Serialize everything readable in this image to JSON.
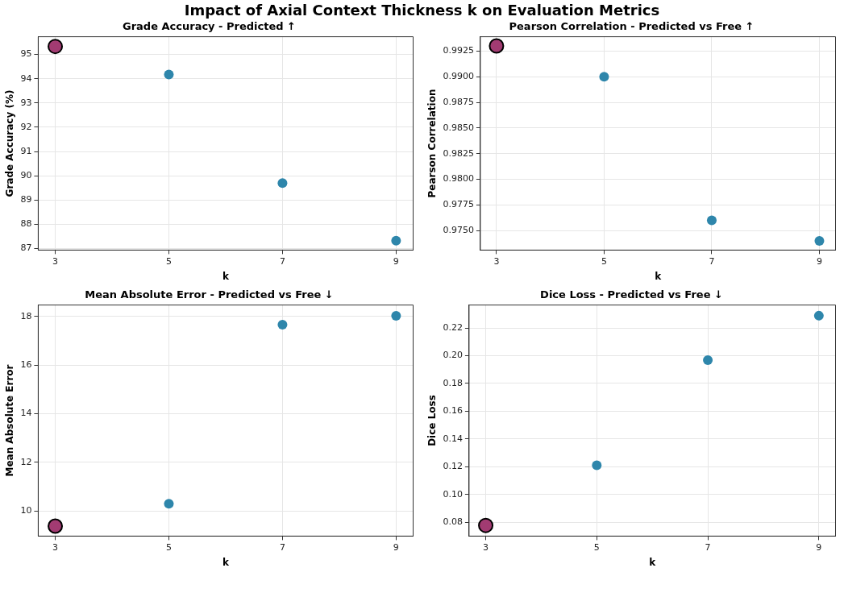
{
  "chart_data": [
    {
      "type": "other",
      "title": "Impact of Axial Context Thickness k on Evaluation Metrics"
    },
    {
      "type": "scatter",
      "title": "Grade Accuracy - Predicted ↑",
      "xlabel": "k",
      "ylabel": "Grade Accuracy (%)",
      "xlim": [
        2.7,
        9.3
      ],
      "xticks": [
        3,
        5,
        7,
        9
      ],
      "ylim": [
        86.94,
        95.73
      ],
      "yticks": [
        87,
        88,
        89,
        90,
        91,
        92,
        93,
        94,
        95
      ],
      "grid": true,
      "marker": "circle",
      "series": [
        {
          "color": "#2e86ab",
          "x": [
            5,
            7,
            9
          ],
          "values": [
            94.17,
            89.7,
            87.33
          ]
        },
        {
          "color": "#a23b72",
          "x": [
            3
          ],
          "values": [
            95.33
          ]
        }
      ]
    },
    {
      "type": "scatter",
      "title": "Pearson Correlation - Predicted vs Free ↑",
      "xlabel": "k",
      "ylabel": "Pearson Correlation",
      "xlim": [
        2.7,
        9.3
      ],
      "xticks": [
        3,
        5,
        7,
        9
      ],
      "ylim": [
        0.9731,
        0.9939
      ],
      "yticks": [
        {
          "value": 0.975,
          "label": "0.9750"
        },
        0.9775,
        {
          "value": 0.98,
          "label": "0.9800"
        },
        0.9825,
        {
          "value": 0.985,
          "label": "0.9850"
        },
        0.9875,
        {
          "value": 0.99,
          "label": "0.9900"
        },
        0.9925
      ],
      "grid": true,
      "marker": "circle",
      "series": [
        {
          "color": "#2e86ab",
          "x": [
            5,
            7,
            9
          ],
          "values": [
            0.99,
            0.976,
            0.974
          ]
        },
        {
          "color": "#a23b72",
          "x": [
            3
          ],
          "values": [
            0.993
          ]
        }
      ]
    },
    {
      "type": "scatter",
      "title": "Mean Absolute Error - Predicted vs Free ↓",
      "xlabel": "k",
      "ylabel": "Mean Absolute Error",
      "xlim": [
        2.7,
        9.3
      ],
      "xticks": [
        3,
        5,
        7,
        9
      ],
      "ylim": [
        8.97,
        18.47
      ],
      "yticks": [
        10,
        12,
        14,
        16,
        18
      ],
      "grid": true,
      "marker": "circle",
      "series": [
        {
          "color": "#2e86ab",
          "x": [
            5,
            7,
            9
          ],
          "values": [
            10.3,
            17.66,
            18.03
          ]
        },
        {
          "color": "#a23b72",
          "x": [
            3
          ],
          "values": [
            9.38
          ]
        }
      ]
    },
    {
      "type": "scatter",
      "title": "Dice Loss - Predicted vs Free ↓",
      "xlabel": "k",
      "ylabel": "Dice Loss",
      "xlim": [
        2.7,
        9.3
      ],
      "xticks": [
        3,
        5,
        7,
        9
      ],
      "ylim": [
        0.0701,
        0.2365
      ],
      "yticks": [
        0.08,
        {
          "value": 0.1,
          "label": "0.10"
        },
        0.12,
        0.14,
        0.16,
        0.18,
        {
          "value": 0.2,
          "label": "0.20"
        },
        0.22
      ],
      "grid": true,
      "marker": "circle",
      "series": [
        {
          "color": "#2e86ab",
          "x": [
            5,
            7,
            9
          ],
          "values": [
            0.1211,
            0.1968,
            0.2288
          ]
        },
        {
          "color": "#a23b72",
          "x": [
            3
          ],
          "values": [
            0.0778
          ]
        }
      ]
    }
  ]
}
